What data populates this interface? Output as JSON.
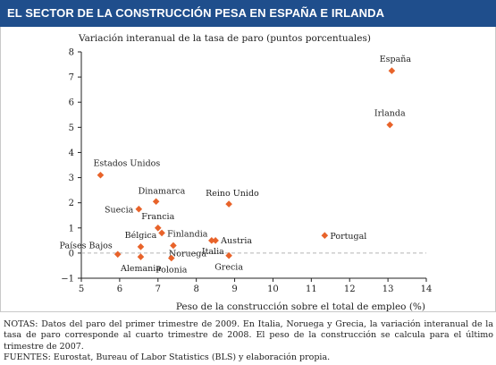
{
  "header": {
    "title": "EL SECTOR DE LA CONSTRUCCIÓN PESA EN ESPAÑA E IRLANDA"
  },
  "chart_data": {
    "type": "scatter",
    "title": "EL SECTOR DE LA CONSTRUCCIÓN PESA EN ESPAÑA E IRLANDA",
    "ylabel": "Variación interanual de la tasa de paro (puntos porcentuales)",
    "xlabel": "Peso de la construcción sobre el total de empleo (%)",
    "xlim": [
      5,
      14
    ],
    "ylim": [
      -1,
      8
    ],
    "x_ticks": [
      5,
      6,
      7,
      8,
      9,
      10,
      11,
      12,
      13,
      14
    ],
    "y_ticks": [
      -1,
      0,
      1,
      2,
      3,
      4,
      5,
      6,
      7,
      8
    ],
    "zero_line": "dashed",
    "grid": false,
    "marker": "diamond",
    "marker_color": "#e8632a",
    "points": [
      {
        "label": "España",
        "x": 13.1,
        "y": 7.25
      },
      {
        "label": "Irlanda",
        "x": 13.05,
        "y": 5.1
      },
      {
        "label": "Estados Unidos",
        "x": 5.5,
        "y": 3.1
      },
      {
        "label": "Dinamarca",
        "x": 6.95,
        "y": 2.05
      },
      {
        "label": "Reino Unido",
        "x": 8.85,
        "y": 1.95
      },
      {
        "label": "Suecia",
        "x": 6.5,
        "y": 1.75
      },
      {
        "label": "Francia",
        "x": 7.0,
        "y": 1.0
      },
      {
        "label": "Finlandia",
        "x": 7.1,
        "y": 0.8
      },
      {
        "label": "Bélgica",
        "x": 6.55,
        "y": 0.25
      },
      {
        "label": "Países Bajos",
        "x": 5.95,
        "y": -0.05
      },
      {
        "label": "Alemania",
        "x": 6.55,
        "y": -0.15
      },
      {
        "label": "Noruega",
        "x": 7.4,
        "y": 0.3
      },
      {
        "label": "Polonia",
        "x": 7.35,
        "y": -0.2
      },
      {
        "label": "Italia",
        "x": 8.4,
        "y": 0.5
      },
      {
        "label": "Austria",
        "x": 8.5,
        "y": 0.5
      },
      {
        "label": "Grecia",
        "x": 8.85,
        "y": -0.1
      },
      {
        "label": "Portugal",
        "x": 11.35,
        "y": 0.7
      }
    ]
  },
  "notes": {
    "notas": "NOTAS: Datos del paro del primer trimestre de 2009. En Italia, Noruega y Grecia, la variación interanual de la tasa de paro corresponde al cuarto trimestre de 2008. El peso de la construcción se calcula para el último trimestre de 2007.",
    "fuentes": "FUENTES: Eurostat, Bureau of Labor Statistics (BLS) y elaboración propia."
  }
}
